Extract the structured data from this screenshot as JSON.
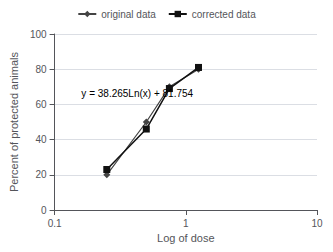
{
  "chart_data": {
    "type": "line",
    "xlabel": "Log of dose",
    "ylabel": "Percent of protected animals",
    "log": "x",
    "xlim": [
      0.1,
      10
    ],
    "xticks": [
      0.1,
      1,
      10
    ],
    "ylim": [
      0,
      100
    ],
    "yticks": [
      0,
      20,
      40,
      60,
      80,
      100
    ],
    "grid": true,
    "legend": "top",
    "series": [
      {
        "name": "original data",
        "x": [
          0.25,
          0.5,
          0.75,
          1.25
        ],
        "values": [
          20,
          50,
          70,
          80
        ],
        "color": "#444444",
        "marker": "diamond"
      },
      {
        "name": "corrected data",
        "x": [
          0.25,
          0.5,
          0.75,
          1.25
        ],
        "values": [
          23,
          46,
          69,
          81
        ],
        "color": "#111111",
        "marker": "square"
      }
    ],
    "annotations": [
      {
        "text": "y = 38.265Ln(x) + 81.754",
        "x": 0.16,
        "y": 66
      }
    ]
  }
}
